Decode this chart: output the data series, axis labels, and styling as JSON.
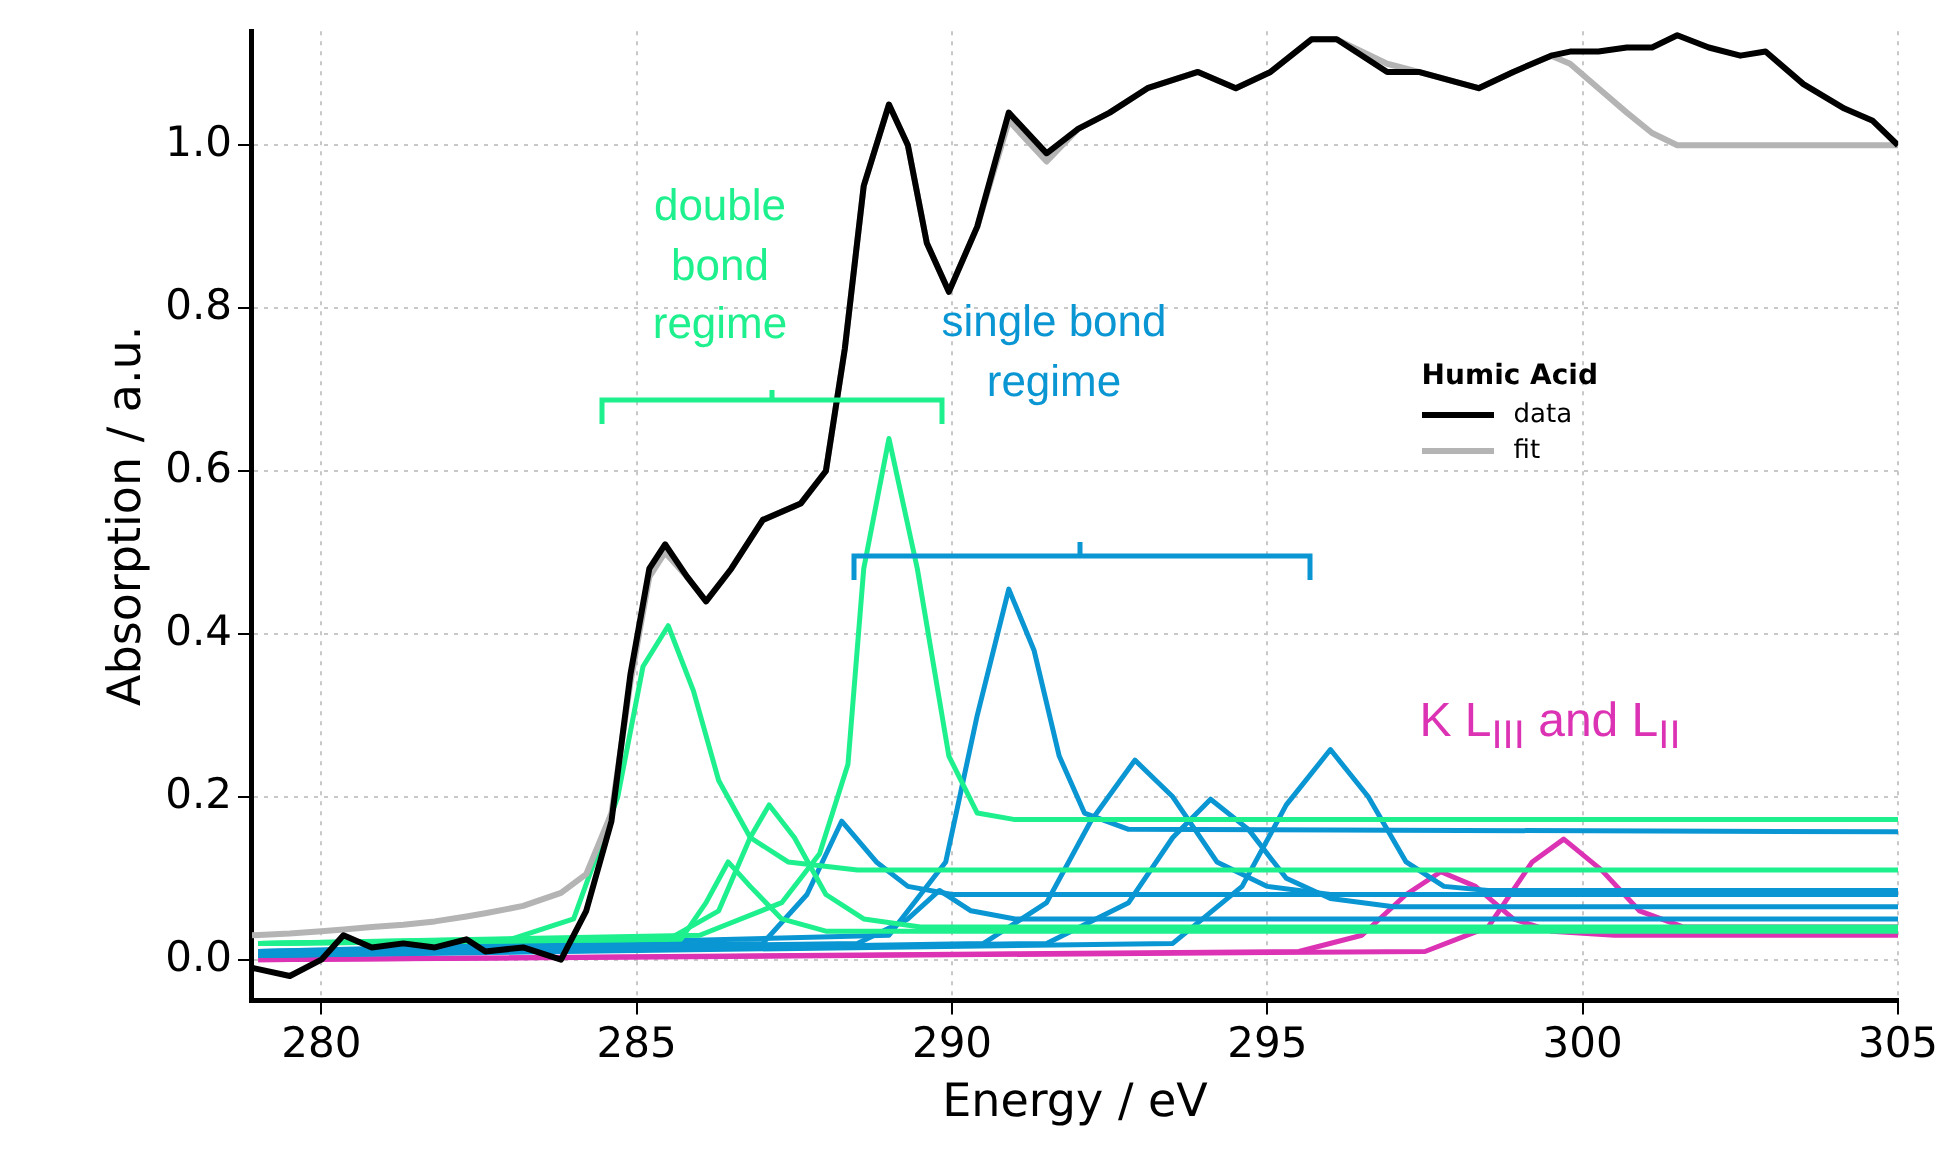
{
  "chart_data": {
    "type": "line",
    "xlabel": "Energy / eV",
    "ylabel": "Absorption / a.u.",
    "legend_title": "Humic Acid",
    "legend": "right",
    "grid": true,
    "marker": "none",
    "line_style": "solid",
    "xlim": [
      278.9,
      305
    ],
    "ylim": [
      -0.05,
      1.14
    ],
    "xticks": [
      280,
      285,
      290,
      295,
      300,
      305
    ],
    "yticks": [
      {
        "value": 0,
        "label": "0.0"
      },
      {
        "value": 0.2,
        "label": "0.2"
      },
      {
        "value": 0.4,
        "label": "0.4"
      },
      {
        "value": 0.6,
        "label": "0.6"
      },
      {
        "value": 0.8,
        "label": "0.8"
      },
      {
        "value": 1,
        "label": "1.0"
      }
    ],
    "x": [
      278.9,
      279.5,
      280.0,
      280.35,
      280.8,
      281.3,
      281.8,
      282.3,
      282.6,
      283.2,
      283.8,
      284.2,
      284.6,
      284.9,
      285.2,
      285.45,
      285.8,
      286.1,
      286.5,
      287.0,
      287.6,
      288.0,
      288.3,
      288.6,
      289.0,
      289.3,
      289.6,
      289.95,
      290.4,
      290.9,
      291.5,
      292.0,
      292.5,
      293.1,
      293.9,
      294.5,
      295.05,
      295.7,
      296.1,
      296.9,
      297.4,
      298.35,
      298.9,
      299.5,
      299.8,
      300.25,
      300.7,
      301.1,
      301.5,
      302.0,
      302.5,
      302.9,
      303.5,
      304.15,
      304.6,
      305.0
    ],
    "series": [
      {
        "name": "data",
        "color": "#000000",
        "values": [
          -0.01,
          -0.02,
          0.0,
          0.03,
          0.015,
          0.02,
          0.015,
          0.025,
          0.01,
          0.015,
          0.0,
          0.06,
          0.17,
          0.35,
          0.48,
          0.51,
          0.47,
          0.44,
          0.48,
          0.54,
          0.56,
          0.6,
          0.75,
          0.95,
          1.05,
          1.0,
          0.88,
          0.82,
          0.9,
          1.04,
          0.99,
          1.02,
          1.04,
          1.07,
          1.09,
          1.07,
          1.09,
          1.13,
          1.13,
          1.09,
          1.09,
          1.07,
          1.09,
          1.11,
          1.115,
          1.115,
          1.12,
          1.12,
          1.135,
          1.12,
          1.11,
          1.115,
          1.075,
          1.045,
          1.03,
          1.0
        ]
      },
      {
        "name": "fit",
        "color": "#b4b4b4",
        "values": [
          0.03,
          0.032,
          0.035,
          0.037,
          0.04,
          0.043,
          0.047,
          0.053,
          0.057,
          0.066,
          0.082,
          0.105,
          0.18,
          0.34,
          0.47,
          0.5,
          0.47,
          0.44,
          0.48,
          0.54,
          0.56,
          0.6,
          0.75,
          0.95,
          1.05,
          1.0,
          0.88,
          0.82,
          0.9,
          1.03,
          0.98,
          1.02,
          1.04,
          1.07,
          1.09,
          1.07,
          1.09,
          1.13,
          1.13,
          1.1,
          1.09,
          1.07,
          1.09,
          1.11,
          1.1,
          1.07,
          1.04,
          1.015,
          1.0,
          1.0,
          1.0,
          1.0,
          1.0,
          1.0,
          1.0,
          1.0
        ]
      },
      {
        "color": "#1ef08e",
        "x": [
          279,
          283,
          284,
          284.7,
          285.1,
          285.5,
          285.9,
          286.3,
          286.8,
          287.4,
          288.5,
          305
        ],
        "values": [
          0.02,
          0.025,
          0.05,
          0.2,
          0.36,
          0.41,
          0.33,
          0.22,
          0.15,
          0.12,
          0.11,
          0.11
        ]
      },
      {
        "color": "#1ef08e",
        "x": [
          279,
          286,
          287.3,
          287.9,
          288.35,
          288.6,
          289.0,
          289.45,
          289.95,
          290.4,
          291,
          305
        ],
        "values": [
          0.02,
          0.03,
          0.07,
          0.13,
          0.24,
          0.48,
          0.64,
          0.48,
          0.25,
          0.18,
          0.172,
          0.172
        ]
      },
      {
        "color": "#1ef08e",
        "x": [
          279,
          285.5,
          286.3,
          286.8,
          287.1,
          287.5,
          288.0,
          288.6,
          289.5,
          305
        ],
        "values": [
          0.02,
          0.025,
          0.06,
          0.15,
          0.19,
          0.15,
          0.08,
          0.05,
          0.04,
          0.04
        ]
      },
      {
        "color": "#1ef08e",
        "x": [
          279,
          285.7,
          286.1,
          286.45,
          286.8,
          287.3,
          288,
          305
        ],
        "values": [
          0.02,
          0.025,
          0.07,
          0.12,
          0.09,
          0.05,
          0.035,
          0.035
        ]
      },
      {
        "color": "#0a96d2",
        "x": [
          279,
          287,
          287.7,
          288.25,
          288.8,
          289.3,
          290,
          305
        ],
        "values": [
          0.01,
          0.02,
          0.08,
          0.17,
          0.12,
          0.09,
          0.08,
          0.08
        ]
      },
      {
        "color": "#0a96d2",
        "x": [
          279,
          288.5,
          289.3,
          289.8,
          290.3,
          291,
          305
        ],
        "values": [
          0.01,
          0.02,
          0.05,
          0.085,
          0.06,
          0.05,
          0.05
        ]
      },
      {
        "color": "#0a96d2",
        "x": [
          279,
          289,
          289.9,
          290.4,
          290.9,
          291.3,
          291.7,
          292.1,
          292.8,
          305
        ],
        "values": [
          0.01,
          0.03,
          0.12,
          0.3,
          0.455,
          0.38,
          0.25,
          0.18,
          0.16,
          0.157
        ]
      },
      {
        "color": "#0a96d2",
        "x": [
          279,
          290.5,
          291.5,
          292.2,
          292.9,
          293.5,
          294.2,
          295,
          296,
          305
        ],
        "values": [
          0.005,
          0.02,
          0.07,
          0.17,
          0.245,
          0.2,
          0.12,
          0.09,
          0.08,
          0.08
        ]
      },
      {
        "color": "#0a96d2",
        "x": [
          279,
          291.5,
          292.8,
          293.5,
          294.1,
          294.7,
          295.3,
          296,
          297,
          305
        ],
        "values": [
          0.005,
          0.02,
          0.07,
          0.15,
          0.197,
          0.16,
          0.1,
          0.075,
          0.065,
          0.065
        ]
      },
      {
        "color": "#0a96d2",
        "x": [
          279,
          293.5,
          294.6,
          295.3,
          296.0,
          296.6,
          297.2,
          297.8,
          298.5,
          305
        ],
        "values": [
          0.005,
          0.02,
          0.09,
          0.19,
          0.258,
          0.2,
          0.12,
          0.09,
          0.085,
          0.085
        ]
      },
      {
        "color": "#dc32b4",
        "x": [
          279,
          295.5,
          296.5,
          297.2,
          297.75,
          298.3,
          298.9,
          299.5,
          300.5,
          305
        ],
        "values": [
          0.0,
          0.01,
          0.03,
          0.08,
          0.108,
          0.09,
          0.05,
          0.035,
          0.03,
          0.03
        ]
      },
      {
        "color": "#dc32b4",
        "x": [
          279,
          297.5,
          298.5,
          299.2,
          299.7,
          300.3,
          300.9,
          301.6,
          302.5,
          305
        ],
        "values": [
          0.0,
          0.01,
          0.04,
          0.12,
          0.148,
          0.11,
          0.06,
          0.04,
          0.04,
          0.04
        ]
      }
    ],
    "annotations": [
      "double bond regime",
      "single bond regime",
      "K L$_{III}$ and L$_{II}$"
    ]
  }
}
